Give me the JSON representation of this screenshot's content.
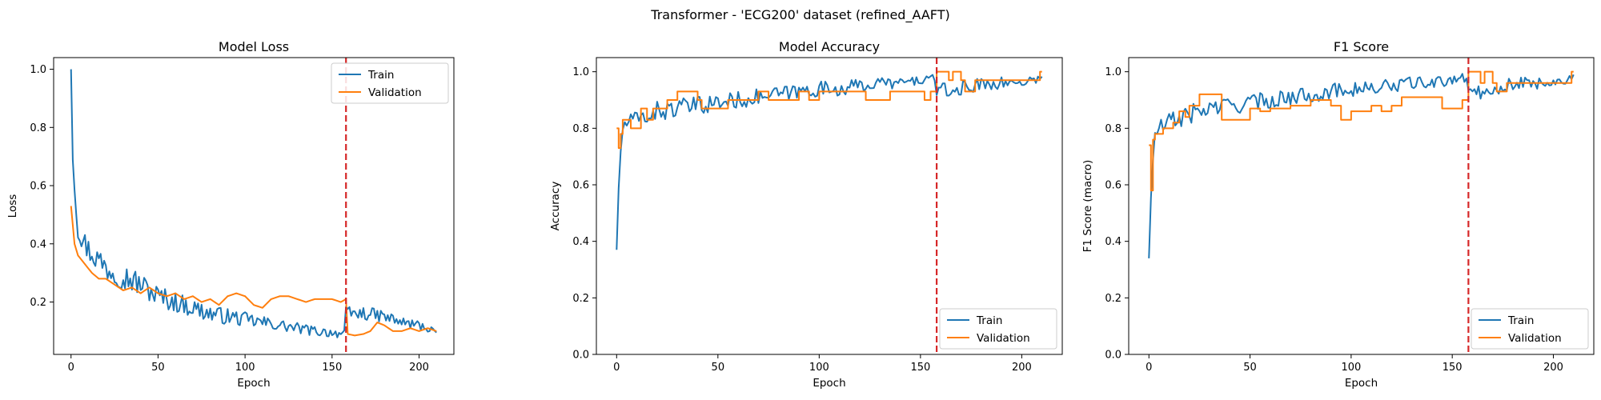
{
  "figure": {
    "suptitle": "Transformer - 'ECG200' dataset (refined_AAFT)"
  },
  "colors": {
    "train": "#1f77b4",
    "validation": "#ff7f0e",
    "marker_line": "#d62728"
  },
  "legend_labels": {
    "train": "Train",
    "validation": "Validation"
  },
  "chart_data": [
    {
      "type": "line",
      "title": "Model Loss",
      "xlabel": "Epoch",
      "ylabel": "Loss",
      "xlim": [
        -10,
        220
      ],
      "ylim": [
        0.02,
        1.04
      ],
      "xticks": [
        0,
        50,
        100,
        150,
        200
      ],
      "yticks": [
        0.2,
        0.4,
        0.6,
        0.8,
        1.0
      ],
      "legend": "top-right",
      "grid": false,
      "vline_x": 158,
      "series": [
        {
          "name": "Train",
          "kind": "noisy",
          "anchors": [
            [
              0,
              1.0
            ],
            [
              1,
              0.7
            ],
            [
              2,
              0.6
            ],
            [
              3,
              0.52
            ],
            [
              4,
              0.46
            ],
            [
              6,
              0.42
            ],
            [
              10,
              0.38
            ],
            [
              15,
              0.35
            ],
            [
              20,
              0.32
            ],
            [
              30,
              0.29
            ],
            [
              40,
              0.26
            ],
            [
              50,
              0.22
            ],
            [
              60,
              0.2
            ],
            [
              70,
              0.18
            ],
            [
              80,
              0.16
            ],
            [
              90,
              0.15
            ],
            [
              100,
              0.14
            ],
            [
              110,
              0.13
            ],
            [
              120,
              0.12
            ],
            [
              130,
              0.11
            ],
            [
              140,
              0.1
            ],
            [
              150,
              0.095
            ],
            [
              157,
              0.09
            ],
            [
              158,
              0.16
            ],
            [
              170,
              0.16
            ],
            [
              180,
              0.15
            ],
            [
              190,
              0.13
            ],
            [
              200,
              0.12
            ],
            [
              210,
              0.1
            ]
          ],
          "noise": [
            [
              0,
              0.0
            ],
            [
              3,
              0.04
            ],
            [
              20,
              0.05
            ],
            [
              60,
              0.035
            ],
            [
              120,
              0.02
            ],
            [
              157,
              0.015
            ],
            [
              158,
              0.025
            ],
            [
              210,
              0.015
            ]
          ]
        },
        {
          "name": "Validation",
          "kind": "smooth",
          "points": [
            [
              0,
              0.53
            ],
            [
              2,
              0.4
            ],
            [
              4,
              0.36
            ],
            [
              8,
              0.33
            ],
            [
              12,
              0.3
            ],
            [
              16,
              0.28
            ],
            [
              20,
              0.28
            ],
            [
              25,
              0.26
            ],
            [
              30,
              0.24
            ],
            [
              35,
              0.25
            ],
            [
              40,
              0.23
            ],
            [
              45,
              0.25
            ],
            [
              50,
              0.23
            ],
            [
              55,
              0.22
            ],
            [
              60,
              0.23
            ],
            [
              65,
              0.21
            ],
            [
              70,
              0.22
            ],
            [
              75,
              0.2
            ],
            [
              80,
              0.21
            ],
            [
              85,
              0.19
            ],
            [
              90,
              0.22
            ],
            [
              95,
              0.23
            ],
            [
              100,
              0.22
            ],
            [
              105,
              0.19
            ],
            [
              110,
              0.18
            ],
            [
              115,
              0.21
            ],
            [
              120,
              0.22
            ],
            [
              125,
              0.22
            ],
            [
              130,
              0.21
            ],
            [
              135,
              0.2
            ],
            [
              140,
              0.21
            ],
            [
              145,
              0.21
            ],
            [
              150,
              0.21
            ],
            [
              155,
              0.2
            ],
            [
              158,
              0.21
            ],
            [
              159,
              0.09
            ],
            [
              163,
              0.085
            ],
            [
              168,
              0.09
            ],
            [
              172,
              0.1
            ],
            [
              176,
              0.13
            ],
            [
              180,
              0.12
            ],
            [
              185,
              0.1
            ],
            [
              190,
              0.1
            ],
            [
              195,
              0.11
            ],
            [
              200,
              0.1
            ],
            [
              205,
              0.11
            ],
            [
              210,
              0.1
            ]
          ]
        }
      ]
    },
    {
      "type": "line",
      "title": "Model Accuracy",
      "xlabel": "Epoch",
      "ylabel": "Accuracy",
      "xlim": [
        -10,
        220
      ],
      "ylim": [
        0.0,
        1.05
      ],
      "xticks": [
        0,
        50,
        100,
        150,
        200
      ],
      "yticks": [
        0.0,
        0.2,
        0.4,
        0.6,
        0.8,
        1.0
      ],
      "legend": "bottom-right",
      "grid": false,
      "vline_x": 158,
      "series": [
        {
          "name": "Train",
          "kind": "noisy",
          "anchors": [
            [
              0,
              0.37
            ],
            [
              1,
              0.58
            ],
            [
              2,
              0.72
            ],
            [
              3,
              0.8
            ],
            [
              5,
              0.82
            ],
            [
              10,
              0.83
            ],
            [
              20,
              0.86
            ],
            [
              30,
              0.87
            ],
            [
              40,
              0.88
            ],
            [
              50,
              0.89
            ],
            [
              60,
              0.9
            ],
            [
              70,
              0.91
            ],
            [
              80,
              0.92
            ],
            [
              90,
              0.93
            ],
            [
              100,
              0.94
            ],
            [
              110,
              0.94
            ],
            [
              120,
              0.95
            ],
            [
              130,
              0.96
            ],
            [
              140,
              0.96
            ],
            [
              150,
              0.97
            ],
            [
              157,
              0.98
            ],
            [
              158,
              0.93
            ],
            [
              165,
              0.93
            ],
            [
              175,
              0.95
            ],
            [
              185,
              0.96
            ],
            [
              195,
              0.96
            ],
            [
              205,
              0.97
            ],
            [
              210,
              0.98
            ]
          ],
          "noise": [
            [
              0,
              0.0
            ],
            [
              3,
              0.03
            ],
            [
              20,
              0.035
            ],
            [
              60,
              0.03
            ],
            [
              120,
              0.025
            ],
            [
              157,
              0.015
            ],
            [
              158,
              0.03
            ],
            [
              210,
              0.015
            ]
          ]
        },
        {
          "name": "Validation",
          "kind": "step",
          "points": [
            [
              0,
              0.8
            ],
            [
              1,
              0.73
            ],
            [
              2,
              0.78
            ],
            [
              3,
              0.83
            ],
            [
              6,
              0.83
            ],
            [
              7,
              0.8
            ],
            [
              10,
              0.8
            ],
            [
              12,
              0.87
            ],
            [
              15,
              0.83
            ],
            [
              18,
              0.87
            ],
            [
              22,
              0.87
            ],
            [
              25,
              0.9
            ],
            [
              30,
              0.93
            ],
            [
              40,
              0.9
            ],
            [
              42,
              0.87
            ],
            [
              50,
              0.87
            ],
            [
              55,
              0.9
            ],
            [
              65,
              0.9
            ],
            [
              70,
              0.93
            ],
            [
              75,
              0.9
            ],
            [
              90,
              0.93
            ],
            [
              95,
              0.9
            ],
            [
              100,
              0.93
            ],
            [
              120,
              0.93
            ],
            [
              123,
              0.9
            ],
            [
              130,
              0.9
            ],
            [
              135,
              0.93
            ],
            [
              150,
              0.93
            ],
            [
              152,
              0.9
            ],
            [
              155,
              0.93
            ],
            [
              158,
              1.0
            ],
            [
              163,
              1.0
            ],
            [
              164,
              0.97
            ],
            [
              166,
              1.0
            ],
            [
              169,
              1.0
            ],
            [
              170,
              0.97
            ],
            [
              172,
              0.93
            ],
            [
              175,
              0.93
            ],
            [
              177,
              0.97
            ],
            [
              208,
              0.97
            ],
            [
              209,
              1.0
            ],
            [
              210,
              1.0
            ]
          ]
        }
      ]
    },
    {
      "type": "line",
      "title": "F1 Score",
      "xlabel": "Epoch",
      "ylabel": "F1 Score (macro)",
      "xlim": [
        -10,
        220
      ],
      "ylim": [
        0.0,
        1.05
      ],
      "xticks": [
        0,
        50,
        100,
        150,
        200
      ],
      "yticks": [
        0.0,
        0.2,
        0.4,
        0.6,
        0.8,
        1.0
      ],
      "legend": "bottom-right",
      "grid": false,
      "vline_x": 158,
      "series": [
        {
          "name": "Train",
          "kind": "noisy",
          "anchors": [
            [
              0,
              0.34
            ],
            [
              1,
              0.55
            ],
            [
              2,
              0.68
            ],
            [
              3,
              0.78
            ],
            [
              5,
              0.8
            ],
            [
              10,
              0.82
            ],
            [
              20,
              0.85
            ],
            [
              30,
              0.87
            ],
            [
              40,
              0.88
            ],
            [
              50,
              0.89
            ],
            [
              60,
              0.9
            ],
            [
              70,
              0.91
            ],
            [
              80,
              0.92
            ],
            [
              90,
              0.93
            ],
            [
              100,
              0.94
            ],
            [
              110,
              0.94
            ],
            [
              120,
              0.95
            ],
            [
              130,
              0.96
            ],
            [
              140,
              0.96
            ],
            [
              150,
              0.97
            ],
            [
              157,
              0.98
            ],
            [
              158,
              0.93
            ],
            [
              165,
              0.93
            ],
            [
              175,
              0.95
            ],
            [
              185,
              0.96
            ],
            [
              195,
              0.96
            ],
            [
              205,
              0.97
            ],
            [
              210,
              0.98
            ]
          ],
          "noise": [
            [
              0,
              0.0
            ],
            [
              3,
              0.035
            ],
            [
              20,
              0.035
            ],
            [
              60,
              0.03
            ],
            [
              120,
              0.025
            ],
            [
              157,
              0.015
            ],
            [
              158,
              0.03
            ],
            [
              210,
              0.015
            ]
          ]
        },
        {
          "name": "Validation",
          "kind": "step",
          "points": [
            [
              0,
              0.74
            ],
            [
              1,
              0.58
            ],
            [
              2,
              0.76
            ],
            [
              3,
              0.78
            ],
            [
              6,
              0.78
            ],
            [
              7,
              0.8
            ],
            [
              10,
              0.8
            ],
            [
              12,
              0.82
            ],
            [
              15,
              0.86
            ],
            [
              18,
              0.84
            ],
            [
              20,
              0.88
            ],
            [
              25,
              0.92
            ],
            [
              35,
              0.92
            ],
            [
              36,
              0.83
            ],
            [
              45,
              0.83
            ],
            [
              50,
              0.87
            ],
            [
              55,
              0.86
            ],
            [
              60,
              0.87
            ],
            [
              70,
              0.88
            ],
            [
              80,
              0.9
            ],
            [
              90,
              0.88
            ],
            [
              95,
              0.83
            ],
            [
              100,
              0.86
            ],
            [
              110,
              0.88
            ],
            [
              115,
              0.86
            ],
            [
              120,
              0.88
            ],
            [
              125,
              0.91
            ],
            [
              140,
              0.91
            ],
            [
              145,
              0.87
            ],
            [
              150,
              0.87
            ],
            [
              155,
              0.9
            ],
            [
              158,
              1.0
            ],
            [
              163,
              1.0
            ],
            [
              164,
              0.96
            ],
            [
              166,
              1.0
            ],
            [
              169,
              1.0
            ],
            [
              170,
              0.96
            ],
            [
              172,
              0.93
            ],
            [
              175,
              0.93
            ],
            [
              177,
              0.96
            ],
            [
              208,
              0.96
            ],
            [
              209,
              1.0
            ],
            [
              210,
              1.0
            ]
          ]
        }
      ]
    }
  ]
}
